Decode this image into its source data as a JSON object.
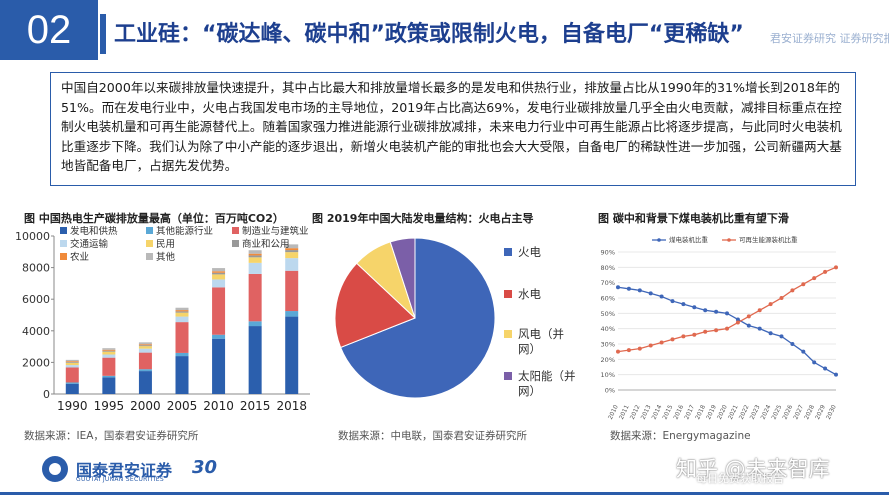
{
  "header": {
    "section_number": "02",
    "title": "工业硅：“碳达峰、碳中和”政策或限制火电，自备电厂“更稀缺”",
    "header_right": "君安证券研究 证券研究报告会"
  },
  "summary": "中国自2000年以来碳排放量快速提升，其中占比最大和排放量增长最多的是发电和供热行业，排放量占比从1990年的31%增长到2018年的51%。而在发电行业中，火电占我国发电市场的主导地位，2019年占比高达69%，发电行业碳排放量几乎全由火电贡献，减排目标重点在控制火电装机量和可再生能源替代上。随着国家强力推进能源行业碳排放减排，未来电力行业中可再生能源占比将逐步提高，与此同时火电装机比重逐步下降。我们认为除了中小产能的逐步退出，新增火电装机产能的审批也会大大受限，自备电厂的稀缺性进一步加强，公司新疆两大基地皆配备电厂，占据先发优势。",
  "charts": {
    "left": {
      "title": "图 中国热电生产碳排放量最高（单位：百万吨CO2）",
      "source": "数据来源：IEA，国泰君安证券研究所"
    },
    "middle": {
      "title": "图 2019年中国大陆发电量结构：火电占主导",
      "source": "数据来源：中电联，国泰君安证券研究所"
    },
    "right": {
      "title": "图 碳中和背景下煤电装机比重有望下滑",
      "source": "数据来源：Energymagazine"
    }
  },
  "chart_data": [
    {
      "type": "bar",
      "stacked": true,
      "categories": [
        "1990",
        "1995",
        "2000",
        "2005",
        "2010",
        "2015",
        "2018"
      ],
      "ylim": [
        0,
        10000
      ],
      "yticks": [
        0,
        2000,
        4000,
        6000,
        8000,
        10000
      ],
      "legend_placement": "top-left",
      "series": [
        {
          "name": "发电和供热",
          "color": "#2b5fad",
          "values": [
            650,
            1050,
            1450,
            2400,
            3500,
            4300,
            4900
          ]
        },
        {
          "name": "其他能源行业",
          "color": "#5aa8d6",
          "values": [
            80,
            100,
            120,
            200,
            250,
            300,
            350
          ]
        },
        {
          "name": "制造业与建筑业",
          "color": "#e06262",
          "values": [
            950,
            1150,
            1050,
            1950,
            3000,
            3000,
            2550
          ]
        },
        {
          "name": "交通运输",
          "color": "#bcd8ee",
          "values": [
            150,
            200,
            250,
            350,
            500,
            700,
            800
          ]
        },
        {
          "name": "民用",
          "color": "#f6d46a",
          "values": [
            150,
            180,
            160,
            250,
            320,
            350,
            380
          ]
        },
        {
          "name": "商业和公用",
          "color": "#999999",
          "values": [
            50,
            60,
            60,
            80,
            100,
            120,
            130
          ]
        },
        {
          "name": "农业",
          "color": "#f08a3a",
          "values": [
            50,
            60,
            60,
            80,
            100,
            110,
            120
          ]
        },
        {
          "name": "其他",
          "color": "#b9b9b9",
          "values": [
            80,
            100,
            120,
            150,
            200,
            220,
            240
          ]
        }
      ]
    },
    {
      "type": "pie",
      "legend_placement": "right",
      "slices": [
        {
          "name": "火电",
          "value": 69,
          "color": "#3e66b8"
        },
        {
          "name": "水电",
          "value": 18,
          "color": "#d94b46"
        },
        {
          "name": "风电（并网）",
          "value": 8,
          "color": "#f6d46a"
        },
        {
          "name": "太阳能（并网）",
          "value": 5,
          "color": "#7b5fa8"
        }
      ]
    },
    {
      "type": "line",
      "x": [
        "2010",
        "2011",
        "2012",
        "2013",
        "2014",
        "2015",
        "2016",
        "2017",
        "2018",
        "2019",
        "2020",
        "2021",
        "2022",
        "2023",
        "2024",
        "2025",
        "2026",
        "2027",
        "2028",
        "2029",
        "2030"
      ],
      "ylim": [
        0,
        90
      ],
      "yticks": [
        "0%",
        "10%",
        "20%",
        "30%",
        "40%",
        "50%",
        "60%",
        "70%",
        "80%",
        "90%"
      ],
      "legend_placement": "top",
      "series": [
        {
          "name": "煤电装机比重",
          "color": "#3e66b8",
          "values": [
            67,
            66,
            65,
            63,
            61,
            58,
            56,
            54,
            52,
            51,
            50,
            46,
            42,
            40,
            37,
            35,
            30,
            25,
            18,
            14,
            10
          ]
        },
        {
          "name": "可再生能源装机比重",
          "color": "#e0694f",
          "values": [
            25,
            26,
            27,
            29,
            31,
            33,
            35,
            36,
            38,
            39,
            40,
            44,
            48,
            52,
            56,
            60,
            65,
            69,
            73,
            77,
            80
          ]
        }
      ]
    }
  ]
}
